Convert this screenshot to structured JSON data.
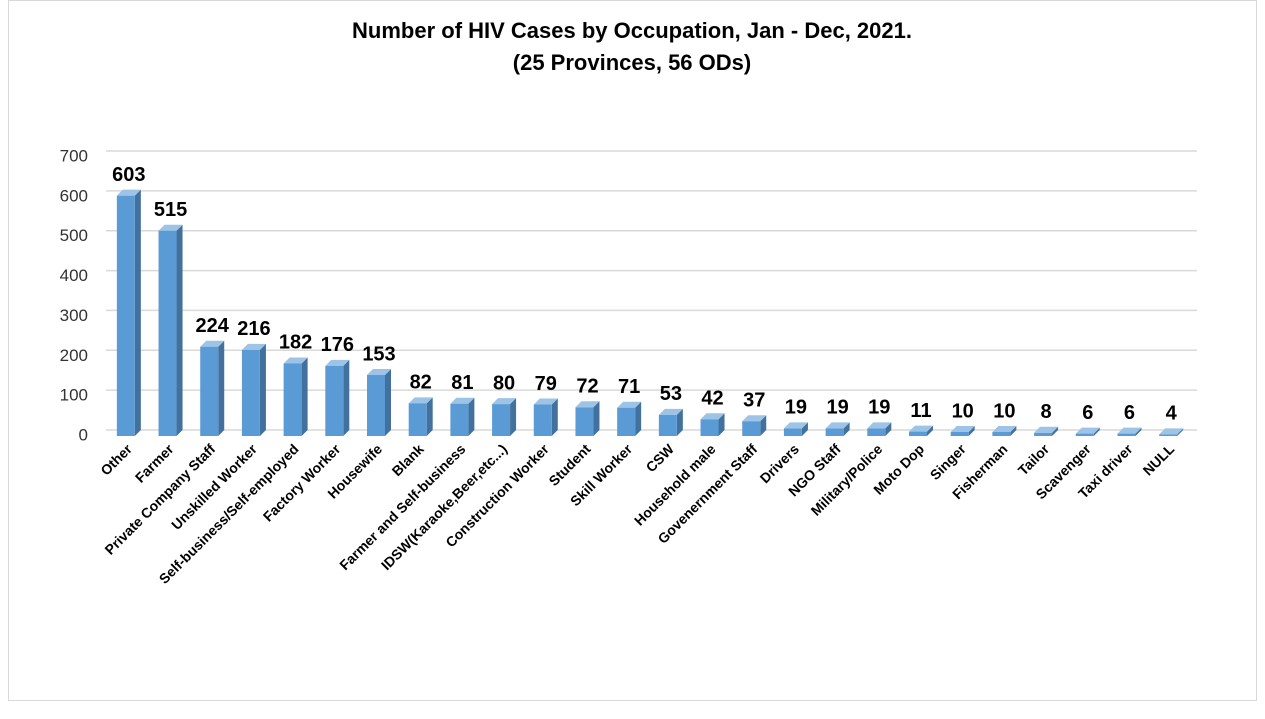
{
  "chart_data": {
    "type": "bar",
    "title": "Number of HIV Cases by Occupation, Jan - Dec, 2021.",
    "subtitle": "(25 Provinces, 56 ODs)",
    "categories": [
      "Other",
      "Farmer",
      "Private Company Staff",
      "Unskilled Worker",
      "Self-business/Self-employed",
      "Factory Worker",
      "Housewife",
      "Blank",
      "Farmer and Self-business",
      "IDSW(Karaoke,Beer,etc...)",
      "Construction Worker",
      "Student",
      "Skill Worker",
      "CSW",
      "Household male",
      "Govenernment Staff",
      "Drivers",
      "NGO Staff",
      "Military/Police",
      "Moto Dop",
      "Singer",
      "Fisherman",
      "Tailor",
      "Scavenger",
      "Taxi driver",
      "NULL"
    ],
    "values": [
      603,
      515,
      224,
      216,
      182,
      176,
      153,
      82,
      81,
      80,
      79,
      72,
      71,
      53,
      42,
      37,
      19,
      19,
      19,
      11,
      10,
      10,
      8,
      6,
      6,
      4
    ],
    "color": "#5b9bd5",
    "ylim": [
      0,
      700
    ],
    "yticks": [
      0,
      100,
      200,
      300,
      400,
      500,
      600,
      700
    ],
    "grid": true
  }
}
